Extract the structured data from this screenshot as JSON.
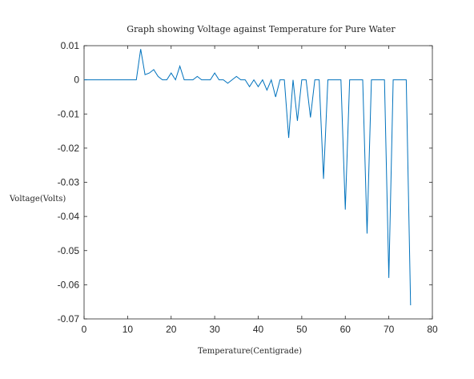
{
  "chart_data": {
    "type": "line",
    "title": "Graph showing Voltage against Temperature for Pure Water",
    "xlabel": "Temperature(Centigrade)",
    "ylabel": "Voltage(Volts)",
    "xlim": [
      0,
      80
    ],
    "ylim": [
      -0.07,
      0.01
    ],
    "xticks": [
      0,
      10,
      20,
      30,
      40,
      50,
      60,
      70,
      80
    ],
    "xtick_labels": [
      "0",
      "10",
      "20",
      "30",
      "40",
      "50",
      "60",
      "70",
      "80"
    ],
    "yticks": [
      0.01,
      0,
      -0.01,
      -0.02,
      -0.03,
      -0.04,
      -0.05,
      -0.06,
      -0.07
    ],
    "ytick_labels": [
      "0.01",
      "0",
      "-0.01",
      "-0.02",
      "-0.03",
      "-0.04",
      "-0.05",
      "-0.06",
      "-0.07"
    ],
    "grid": false,
    "line_color": "#0072bd",
    "series": [
      {
        "x": [
          0,
          1,
          2,
          3,
          4,
          5,
          6,
          7,
          8,
          9,
          10,
          11,
          12,
          13,
          14,
          15,
          16,
          17,
          18,
          19,
          20,
          21,
          22,
          23,
          24,
          25,
          26,
          27,
          28,
          29,
          30,
          31,
          32,
          33,
          34,
          35,
          36,
          37,
          38,
          39,
          40,
          41,
          42,
          43,
          44,
          45,
          46,
          47,
          48,
          49,
          50,
          51,
          52,
          53,
          54,
          55,
          56,
          57,
          58,
          59,
          60,
          61,
          62,
          63,
          64,
          65,
          66,
          67,
          68,
          69,
          70,
          71,
          72,
          73,
          74,
          75
        ],
        "y": [
          0,
          0,
          0,
          0,
          0,
          0,
          0,
          0,
          0,
          0,
          0,
          0,
          0,
          0.009,
          0.0015,
          0.002,
          0.003,
          0.001,
          0,
          0,
          0.002,
          0,
          0.004,
          0,
          0,
          0,
          0.001,
          0,
          0,
          0,
          0.002,
          0,
          0,
          -0.001,
          0,
          0.001,
          0,
          0,
          -0.002,
          0,
          -0.002,
          0,
          -0.003,
          0,
          -0.005,
          0,
          0,
          -0.017,
          0,
          -0.012,
          0,
          0,
          -0.011,
          0,
          0,
          -0.029,
          0,
          0,
          0,
          0,
          -0.038,
          0,
          0,
          0,
          0,
          -0.045,
          0,
          0,
          0,
          0,
          -0.058,
          0,
          0,
          0,
          0,
          -0.066
        ]
      }
    ]
  }
}
